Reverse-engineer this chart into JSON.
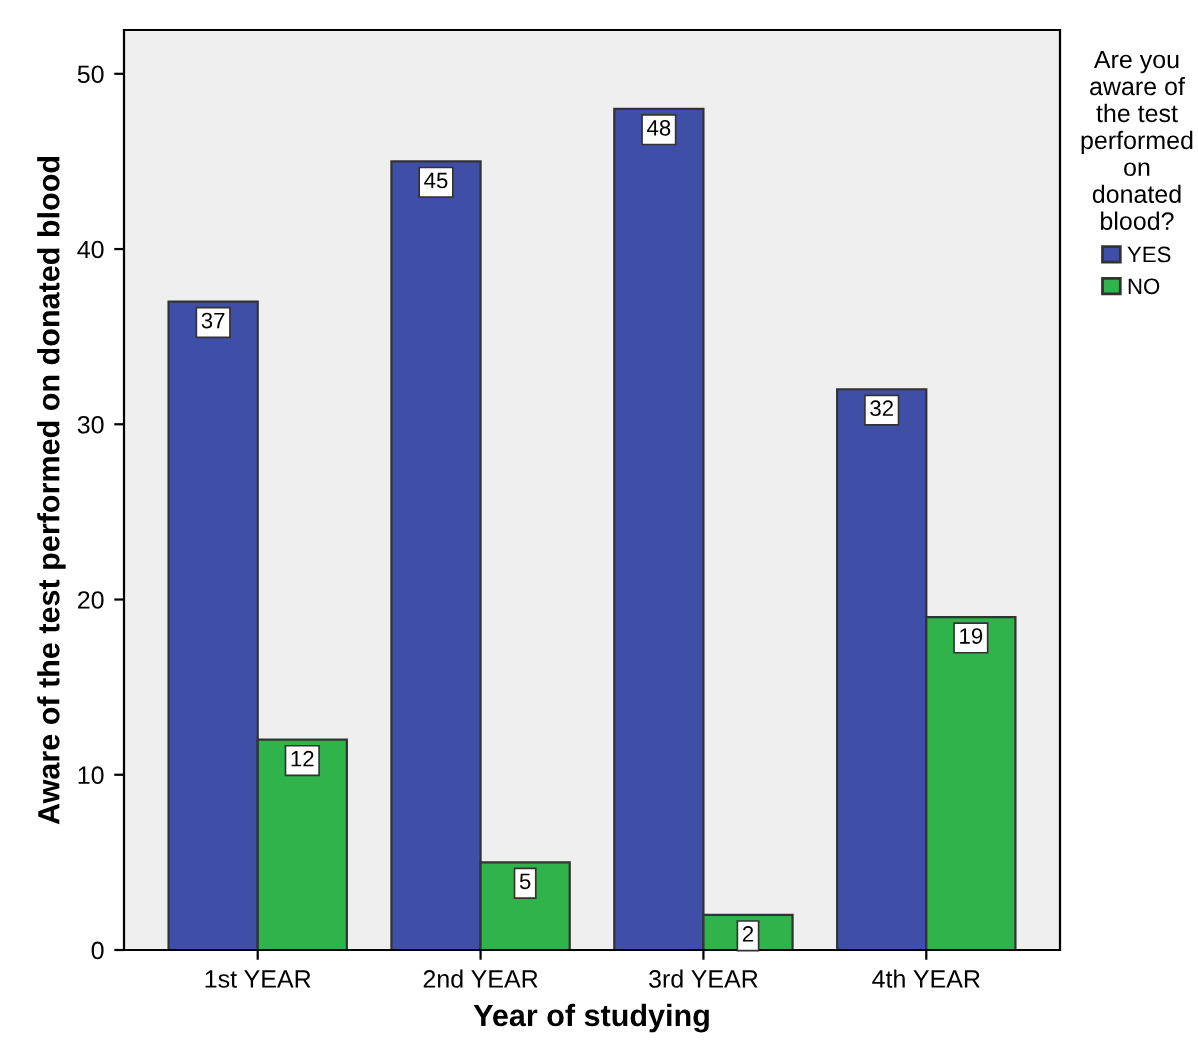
{
  "chart_data": {
    "type": "bar",
    "xlabel": "Year of studying",
    "ylabel": "Aware of the test performed on donated blood",
    "legend_title": "Are you\naware of\nthe test\nperformed\non\ndonated\nblood?",
    "categories": [
      "1st YEAR",
      "2nd YEAR",
      "3rd YEAR",
      "4th YEAR"
    ],
    "series": [
      {
        "name": "YES",
        "color": "#3f4fa8",
        "values": [
          37,
          45,
          48,
          32
        ]
      },
      {
        "name": "NO",
        "color": "#2fb34a",
        "values": [
          12,
          5,
          2,
          19
        ]
      }
    ],
    "ylim": [
      0,
      52.5
    ],
    "yticks": [
      0,
      10,
      20,
      30,
      40,
      50
    ],
    "data_labels": true,
    "grid": false,
    "legend": "right"
  }
}
